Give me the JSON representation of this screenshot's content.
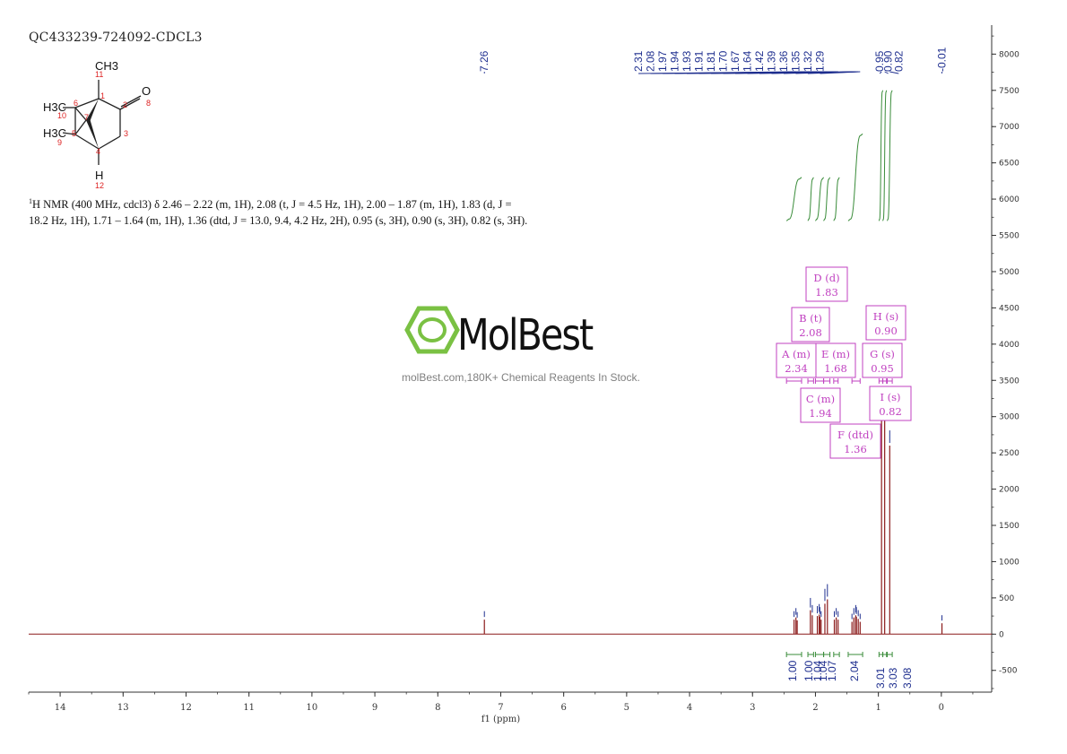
{
  "sample_id": "QC433239-724092-CDCL3",
  "structure": {
    "atoms": [
      "CH3",
      "O",
      "H3C",
      "H3C",
      "H"
    ],
    "numbers": [
      "11",
      "1",
      "2",
      "8",
      "6",
      "7",
      "10",
      "5",
      "3",
      "9",
      "4",
      "12"
    ]
  },
  "nmr_text": {
    "superscript": "1",
    "body": "H NMR (400 MHz, cdcl3) δ 2.46 – 2.22 (m, 1H), 2.08 (t, J = 4.5 Hz, 1H), 2.00 – 1.87 (m, 1H), 1.83 (d, J = 18.2 Hz, 1H), 1.71 – 1.64 (m, 1H), 1.36 (dtd, J = 13.0, 9.4, 4.2 Hz, 2H), 0.95 (s, 3H), 0.90 (s, 3H), 0.82 (s, 3H)."
  },
  "watermark": {
    "name": "MolBest",
    "tagline": "molBest.com,180K+ Chemical Reagents In Stock.",
    "logo_color": "#7ac143"
  },
  "chart_data": {
    "type": "line",
    "xlabel": "f1 (ppm)",
    "xlim": [
      14.5,
      -0.8
    ],
    "x_reversed": true,
    "x_ticks": [
      14,
      13,
      12,
      11,
      10,
      9,
      8,
      7,
      6,
      5,
      4,
      3,
      2,
      1,
      0
    ],
    "ylim": [
      -800,
      8400
    ],
    "y_ticks": [
      -500,
      0,
      500,
      1000,
      1500,
      2000,
      2500,
      3000,
      3500,
      4000,
      4500,
      5000,
      5500,
      6000,
      6500,
      7000,
      7500,
      8000
    ],
    "grid": false,
    "peak_labels": [
      "7.26",
      "2.31",
      "2.08",
      "1.97",
      "1.94",
      "1.93",
      "1.91",
      "1.81",
      "1.70",
      "1.67",
      "1.64",
      "1.42",
      "1.39",
      "1.36",
      "1.35",
      "1.32",
      "1.29",
      "0.95",
      "0.90",
      "0.82",
      "-0.01"
    ],
    "peaks": [
      {
        "ppm": 7.26,
        "height": 200
      },
      {
        "ppm": 2.34,
        "height": 200
      },
      {
        "ppm": 2.31,
        "height": 230
      },
      {
        "ppm": 2.29,
        "height": 190
      },
      {
        "ppm": 2.08,
        "height": 330
      },
      {
        "ppm": 2.05,
        "height": 260
      },
      {
        "ppm": 1.97,
        "height": 250
      },
      {
        "ppm": 1.94,
        "height": 270
      },
      {
        "ppm": 1.93,
        "height": 240
      },
      {
        "ppm": 1.91,
        "height": 200
      },
      {
        "ppm": 1.85,
        "height": 420
      },
      {
        "ppm": 1.81,
        "height": 480
      },
      {
        "ppm": 1.7,
        "height": 200
      },
      {
        "ppm": 1.67,
        "height": 230
      },
      {
        "ppm": 1.64,
        "height": 200
      },
      {
        "ppm": 1.42,
        "height": 170
      },
      {
        "ppm": 1.39,
        "height": 230
      },
      {
        "ppm": 1.36,
        "height": 260
      },
      {
        "ppm": 1.35,
        "height": 240
      },
      {
        "ppm": 1.32,
        "height": 210
      },
      {
        "ppm": 1.29,
        "height": 170
      },
      {
        "ppm": 0.95,
        "height": 3150
      },
      {
        "ppm": 0.9,
        "height": 3100
      },
      {
        "ppm": 0.82,
        "height": 2600
      },
      {
        "ppm": -0.01,
        "height": 150
      }
    ],
    "integral_curves": [
      {
        "from": 2.46,
        "to": 2.22,
        "base": 5700,
        "top": 6300
      },
      {
        "from": 2.12,
        "to": 2.03,
        "base": 5700,
        "top": 6300
      },
      {
        "from": 2.0,
        "to": 1.87,
        "base": 5700,
        "top": 6300
      },
      {
        "from": 1.87,
        "to": 1.77,
        "base": 5700,
        "top": 6300
      },
      {
        "from": 1.71,
        "to": 1.62,
        "base": 5700,
        "top": 6300
      },
      {
        "from": 1.48,
        "to": 1.25,
        "base": 5700,
        "top": 6900
      },
      {
        "from": 0.99,
        "to": 0.93,
        "base": 5700,
        "top": 7500
      },
      {
        "from": 0.93,
        "to": 0.87,
        "base": 5700,
        "top": 7500
      },
      {
        "from": 0.86,
        "to": 0.78,
        "base": 5700,
        "top": 7500
      }
    ],
    "integration_values": [
      "1.00",
      "1.00",
      "1.04",
      "1.04",
      "1.07",
      "2.04",
      "3.01",
      "3.03",
      "3.08"
    ],
    "multiplets": [
      {
        "label": "A (m)",
        "shift": "2.34"
      },
      {
        "label": "B (t)",
        "shift": "2.08"
      },
      {
        "label": "C (m)",
        "shift": "1.94"
      },
      {
        "label": "D (d)",
        "shift": "1.83"
      },
      {
        "label": "E (m)",
        "shift": "1.68"
      },
      {
        "label": "F (dtd)",
        "shift": "1.36"
      },
      {
        "label": "G (s)",
        "shift": "0.95"
      },
      {
        "label": "H (s)",
        "shift": "0.90"
      },
      {
        "label": "I (s)",
        "shift": "0.82"
      }
    ],
    "colors": {
      "spectrum": "#8b1a1a",
      "peak_labels": "#1f2f8f",
      "integral": "#3a8c3a",
      "multiplet_box": "#c040c0",
      "axis": "#333333"
    }
  }
}
